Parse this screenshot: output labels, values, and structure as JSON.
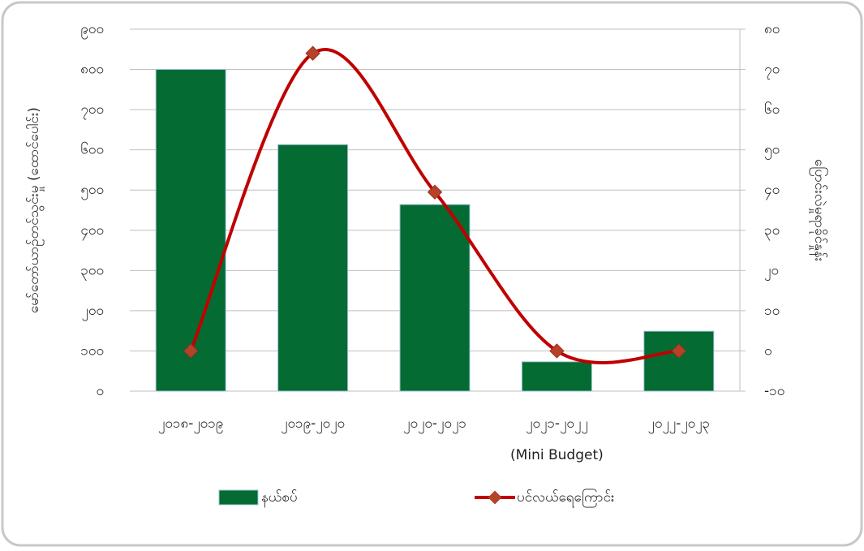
{
  "chart_data": {
    "type": "combo",
    "categories": [
      "၂၀၁၈-၂၀၁၉",
      "၂၀၁၉-၂၀၂၀",
      "၂၀၂၀-၂၀၂၁",
      "၂၀၂၁-၂၀၂၂",
      "၂၀၂၂-၂၀၂၃"
    ],
    "annotations": [
      {
        "text": "(Mini Budget)",
        "category": "၂၀၂၁-၂၀၂၂"
      }
    ],
    "y_label": "မော်တော်ယာဉ်တင်သွင်းမှု (ထောင်ပေါင်း)",
    "y2_label": "ပြောင်းလဲမှုရာခိုင်နှုန်း",
    "series": [
      {
        "name": "နယ်စပ်",
        "type": "bar",
        "color": "#046b32",
        "values": [
          800,
          613,
          464,
          73,
          149
        ]
      },
      {
        "name": "ပင်လယ်ရေကြောင်း",
        "type": "line",
        "axis": "y2",
        "color": "#c00000",
        "marker_color": "#b4432a",
        "smooth": true,
        "values": [
          0,
          74,
          39.5,
          0,
          0
        ]
      }
    ],
    "ylim": [
      0,
      900
    ],
    "yticks": [
      {
        "value": 0,
        "label": "၀"
      },
      {
        "value": 100,
        "label": "၁၀၀"
      },
      {
        "value": 200,
        "label": "၂၀၀"
      },
      {
        "value": 300,
        "label": "၃၀၀"
      },
      {
        "value": 400,
        "label": "၄၀၀"
      },
      {
        "value": 500,
        "label": "၅၀၀"
      },
      {
        "value": 600,
        "label": "၆၀၀"
      },
      {
        "value": 700,
        "label": "၇၀၀"
      },
      {
        "value": 800,
        "label": "၈၀၀"
      },
      {
        "value": 900,
        "label": "၉၀၀"
      }
    ],
    "y2lim": [
      -10,
      80
    ],
    "y2ticks": [
      {
        "value": -10,
        "label": "-၁၀"
      },
      {
        "value": 0,
        "label": "၀"
      },
      {
        "value": 10,
        "label": "၁၀"
      },
      {
        "value": 20,
        "label": "၂၀"
      },
      {
        "value": 30,
        "label": "၃၀"
      },
      {
        "value": 40,
        "label": "၄၀"
      },
      {
        "value": 50,
        "label": "၅၀"
      },
      {
        "value": 60,
        "label": "၆၀"
      },
      {
        "value": 70,
        "label": "၇၀"
      },
      {
        "value": 80,
        "label": "၈၀"
      }
    ],
    "grid": true,
    "legend": "bottom"
  }
}
